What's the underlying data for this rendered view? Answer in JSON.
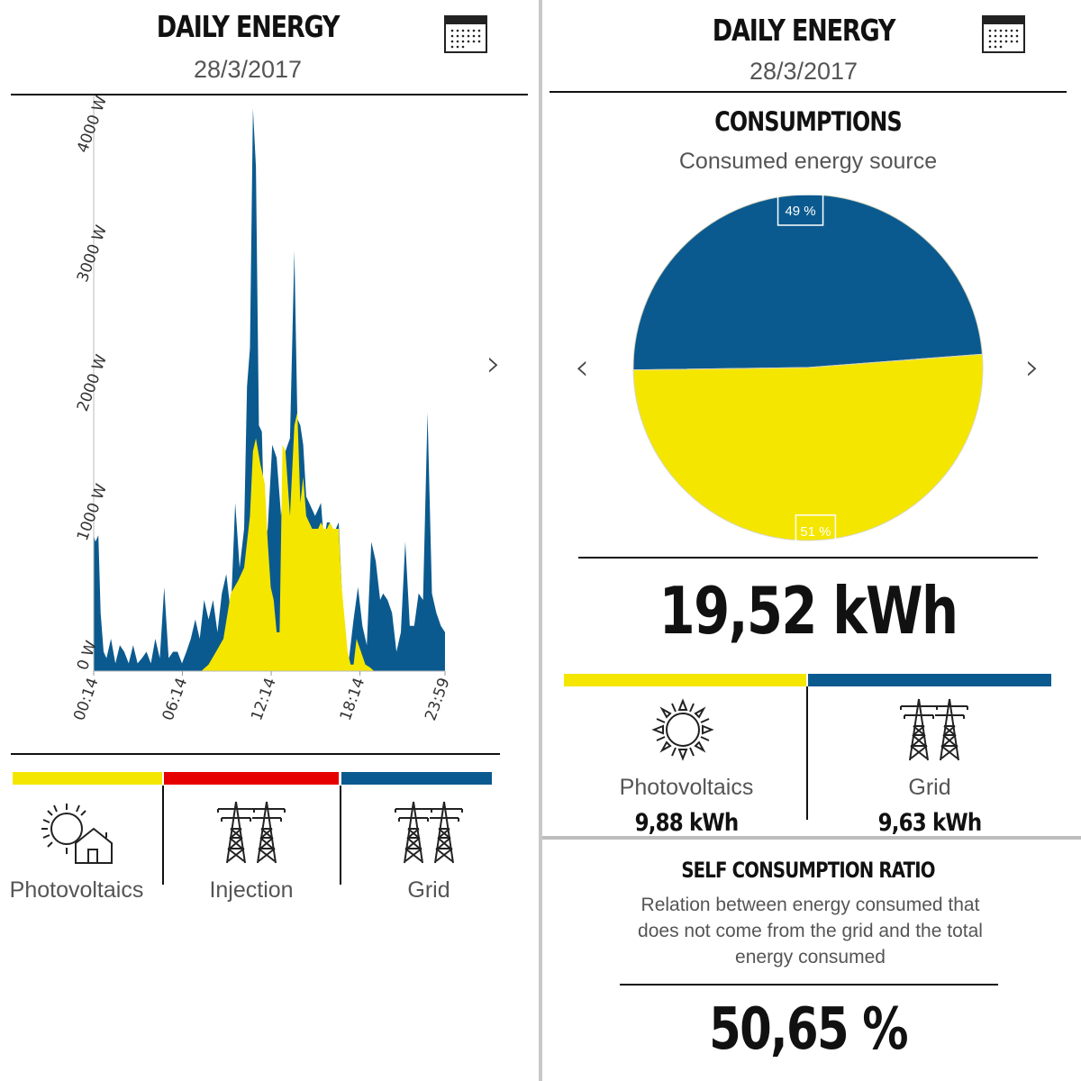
{
  "left": {
    "title": "DAILY ENERGY",
    "date": "28/3/2017",
    "next_arrow": "›",
    "calendar_icon": "calendar-icon",
    "legend": [
      {
        "label": "Photovoltaics",
        "color": "#F5E600",
        "icon": "sun-house-icon"
      },
      {
        "label": "Injection",
        "color": "#E60000",
        "icon": "pylon-icon"
      },
      {
        "label": "Grid",
        "color": "#0B5A8F",
        "icon": "pylon-icon"
      }
    ]
  },
  "right": {
    "title": "DAILY ENERGY",
    "date": "28/3/2017",
    "prev_arrow": "‹",
    "next_arrow": "›",
    "calendar_icon": "calendar-icon",
    "consumptions": {
      "heading": "CONSUMPTIONS",
      "subtitle": "Consumed energy source"
    },
    "total": "19,52 kWh",
    "sources": [
      {
        "label": "Photovoltaics",
        "value": "9,88 kWh",
        "color": "#F5E600",
        "icon": "sun-icon"
      },
      {
        "label": "Grid",
        "value": "9,63 kWh",
        "color": "#0B5A8F",
        "icon": "pylon-icon"
      }
    ],
    "self_consumption": {
      "heading": "SELF CONSUMPTION RATIO",
      "description": "Relation between energy consumed that does not come from the grid and the total energy consumed",
      "value": "50,65 %"
    }
  },
  "chart_data": [
    {
      "type": "area",
      "title": "",
      "xlabel": "",
      "ylabel": "",
      "x_ticks": [
        "00:14",
        "06:14",
        "12:14",
        "18:14",
        "23:59"
      ],
      "y_ticks": [
        "0 W",
        "1000 W",
        "2000 W",
        "3000 W",
        "4000 W"
      ],
      "ylim": [
        0,
        4450
      ],
      "x_unit": "hours",
      "xlim": [
        0.233,
        23.983
      ],
      "series": [
        {
          "color": "#0B5A8F",
          "x": [
            0.23,
            0.35,
            0.55,
            0.7,
            0.9,
            1.1,
            1.4,
            1.7,
            2.0,
            2.3,
            2.6,
            2.9,
            3.2,
            3.5,
            3.8,
            4.1,
            4.4,
            4.7,
            5.0,
            5.3,
            5.6,
            5.9,
            6.2,
            6.5,
            6.8,
            7.1,
            7.4,
            7.7,
            8.0,
            8.3,
            8.6,
            8.9,
            9.2,
            9.5,
            9.8,
            10.1,
            10.4,
            10.6,
            10.8,
            11.0,
            11.2,
            11.4,
            11.6,
            11.8,
            12.0,
            12.3,
            12.6,
            12.9,
            13.2,
            13.5,
            13.8,
            14.0,
            14.2,
            14.4,
            14.6,
            14.8,
            15.0,
            15.2,
            15.4,
            15.6,
            15.8,
            16.0,
            16.2,
            16.4,
            16.6,
            16.8,
            17.0,
            17.2,
            17.5,
            17.8,
            18.1,
            18.4,
            18.7,
            19.0,
            19.3,
            19.6,
            19.8,
            20.1,
            20.4,
            20.7,
            21.0,
            21.3,
            21.6,
            21.9,
            22.2,
            22.5,
            22.8,
            23.1,
            23.4,
            23.7,
            23.98
          ],
          "values": [
            1050,
            1000,
            1050,
            450,
            150,
            100,
            250,
            60,
            200,
            150,
            60,
            200,
            60,
            100,
            150,
            60,
            250,
            100,
            650,
            100,
            150,
            150,
            60,
            150,
            250,
            400,
            250,
            550,
            400,
            550,
            300,
            600,
            750,
            450,
            1300,
            800,
            1100,
            2200,
            2500,
            4350,
            3900,
            1900,
            1850,
            1000,
            1100,
            1750,
            1650,
            1200,
            1700,
            1800,
            3250,
            1950,
            1900,
            1750,
            1350,
            1300,
            1250,
            1200,
            1250,
            1300,
            1000,
            1150,
            1150,
            1100,
            1100,
            1150,
            650,
            150,
            100,
            400,
            650,
            350,
            200,
            1000,
            850,
            550,
            600,
            550,
            450,
            150,
            300,
            1000,
            350,
            350,
            600,
            550,
            2000,
            600,
            450,
            350,
            300
          ]
        },
        {
          "color": "#F5E600",
          "x": [
            7.5,
            8.0,
            8.5,
            9.0,
            9.5,
            10.0,
            10.4,
            10.8,
            11.0,
            11.2,
            11.5,
            11.8,
            12.0,
            12.2,
            12.4,
            12.6,
            12.8,
            13.0,
            13.2,
            13.5,
            13.8,
            14.0,
            14.2,
            14.4,
            14.6,
            14.8,
            15.0,
            15.2,
            15.4,
            15.6,
            15.8,
            16.0,
            16.2,
            16.4,
            16.6,
            16.8,
            17.0,
            17.2,
            17.4,
            17.6,
            17.8,
            18.0,
            18.3,
            18.6,
            18.9,
            19.2
          ],
          "values": [
            0,
            50,
            150,
            250,
            600,
            700,
            800,
            1200,
            1700,
            1800,
            1600,
            1450,
            1000,
            650,
            550,
            300,
            300,
            1750,
            1700,
            1200,
            1900,
            2000,
            1300,
            1500,
            1200,
            1150,
            1100,
            1100,
            1100,
            1150,
            1100,
            1100,
            1150,
            1100,
            1100,
            1100,
            650,
            400,
            150,
            50,
            50,
            250,
            150,
            50,
            30,
            0
          ]
        }
      ]
    },
    {
      "type": "pie",
      "title": "",
      "slices": [
        {
          "label": "49 %",
          "value": 49,
          "color": "#0B5A8F"
        },
        {
          "label": "51 %",
          "value": 51,
          "color": "#F5E600"
        }
      ]
    }
  ]
}
